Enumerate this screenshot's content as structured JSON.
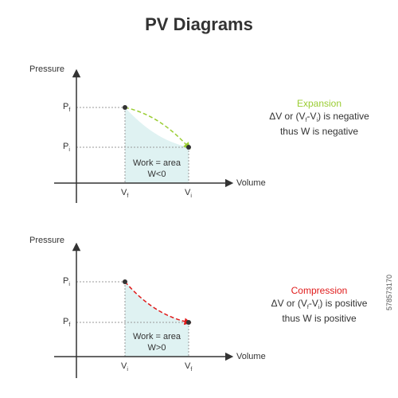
{
  "title": "PV Diagrams",
  "colors": {
    "expansion": "#9acd32",
    "compression": "#e01b1b",
    "work_fill": "#dff2f2",
    "axis": "#333333",
    "dotted": "#9a9a9a"
  },
  "diagram1": {
    "y_axis_label": "Pressure",
    "x_axis_label": "Volume",
    "y_tick_top": {
      "main": "P",
      "sub": "f"
    },
    "y_tick_bottom": {
      "main": "P",
      "sub": "i"
    },
    "x_tick_left": {
      "main": "V",
      "sub": "f"
    },
    "x_tick_right": {
      "main": "V",
      "sub": "i"
    },
    "work_line1": "Work = area",
    "work_line2": "W<0",
    "heading": "Expansion",
    "desc_prefix": "ΔV or (V",
    "desc_sub1": "f",
    "desc_mid": "-V",
    "desc_sub2": "i",
    "desc_suffix": ") is negative",
    "desc_line2": "thus W is negative"
  },
  "diagram2": {
    "y_axis_label": "Pressure",
    "x_axis_label": "Volume",
    "y_tick_top": {
      "main": "P",
      "sub": "i"
    },
    "y_tick_bottom": {
      "main": "P",
      "sub": "f"
    },
    "x_tick_left": {
      "main": "V",
      "sub": "i"
    },
    "x_tick_right": {
      "main": "V",
      "sub": "f"
    },
    "work_line1": "Work = area",
    "work_line2": "W>0",
    "heading": "Compression",
    "desc_prefix": "ΔV or (V",
    "desc_sub1": "f",
    "desc_mid": "-V",
    "desc_sub2": "i",
    "desc_suffix": ") is positive",
    "desc_line2": "thus W is positive"
  },
  "stock_id": "578573170"
}
